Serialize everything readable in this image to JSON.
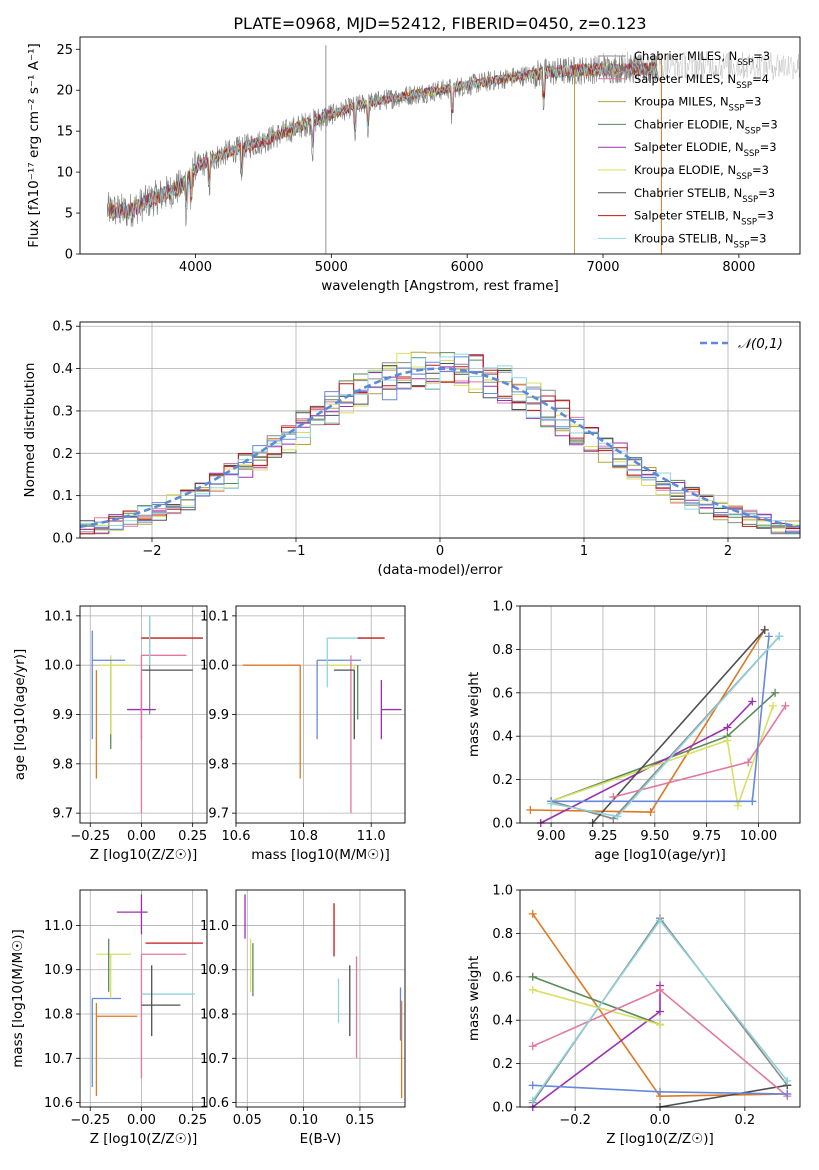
{
  "colors": {
    "legend": [
      "#8a8a8a",
      "#e377a0",
      "#b8a040",
      "#5a8a5a",
      "#9a30b0",
      "#d8e060",
      "#505050",
      "#c01818",
      "#90d8e0"
    ],
    "teal": "#8fd3db",
    "orange": "#e07820",
    "blue": "#6688dd",
    "gauss": "#5b8bd8"
  },
  "chart_data": [
    {
      "type": "line",
      "title": "PLATE=0968, MJD=52412, FIBERID=0450, z=0.123",
      "xlabel": "wavelength [Angstrom, rest frame]",
      "ylabel": "Flux [f_λ10^-17 erg cm^-2 s^-1 A^-1]",
      "xlim": [
        3150,
        8450
      ],
      "ylim": [
        0,
        26.5
      ],
      "xticks": [
        4000,
        5000,
        6000,
        7000,
        8000
      ],
      "yticks": [
        0,
        5,
        10,
        15,
        20,
        25
      ],
      "grid": false,
      "legend_position": "upper-right",
      "continuum": [
        [
          3350,
          5.4
        ],
        [
          3500,
          5.2
        ],
        [
          3700,
          6.8
        ],
        [
          3900,
          8.3
        ],
        [
          4000,
          10.5
        ],
        [
          4200,
          12.2
        ],
        [
          4500,
          13.8
        ],
        [
          4800,
          15.8
        ],
        [
          5000,
          17.0
        ],
        [
          5200,
          18.2
        ],
        [
          5500,
          19.2
        ],
        [
          5800,
          20.0
        ],
        [
          6000,
          20.6
        ],
        [
          6300,
          21.5
        ],
        [
          6600,
          22.2
        ],
        [
          7000,
          22.6
        ],
        [
          7400,
          22.6
        ]
      ],
      "legend": [
        {
          "sym": "Chabrier MILES",
          "n": "=3"
        },
        {
          "sym": "Salpeter MILES",
          "n": "=4"
        },
        {
          "sym": "Kroupa MILES",
          "n": "=3"
        },
        {
          "sym": "Chabrier ELODIE",
          "n": "=3"
        },
        {
          "sym": "Salpeter ELODIE",
          "n": "=3"
        },
        {
          "sym": "Kroupa ELODIE",
          "n": "=3"
        },
        {
          "sym": "Chabrier STELIB",
          "n": "=3"
        },
        {
          "sym": "Salpeter STELIB",
          "n": "=3"
        },
        {
          "sym": "Kroupa STELIB",
          "n": "=3"
        }
      ]
    },
    {
      "type": "histogram",
      "xlabel": "(data-model)/error",
      "ylabel": "Normed distribution",
      "xlim": [
        -2.5,
        2.5
      ],
      "ylim": [
        0,
        0.51
      ],
      "xticks": [
        -2,
        -1,
        0,
        1,
        2
      ],
      "yticks": [
        0,
        0.1,
        0.2,
        0.3,
        0.4,
        0.5
      ],
      "grid": true,
      "legend": "𝒩(0,1)",
      "legend_position": "upper-right",
      "bin_width": 0.1,
      "bin_start": -2.5,
      "peak": 0.4
    },
    {
      "type": "scatter",
      "xlabel": "Z [log10(Z/Z☉)]",
      "ylabel": "age [log10(age/yr)]",
      "xlim": [
        -0.3,
        0.32
      ],
      "ylim": [
        9.68,
        10.12
      ],
      "xticks": [
        -0.25,
        0.0,
        0.25
      ],
      "yticks": [
        9.7,
        9.8,
        9.9,
        10.0,
        10.1
      ],
      "grid": true,
      "points": [
        {
          "x": 0.04,
          "y": 10.0,
          "xerr": [
            0.0,
            0.0
          ],
          "yerr": [
            0.1,
            0.1
          ],
          "c": "#8a8a8a"
        },
        {
          "x": -0.22,
          "y": 9.99,
          "xerr": [
            0.0,
            0.0
          ],
          "yerr": [
            0.22,
            0.0
          ],
          "c": "#e07820"
        },
        {
          "x": -0.15,
          "y": 9.99,
          "xerr": [
            0.0,
            0.0
          ],
          "yerr": [
            0.16,
            0.02
          ],
          "c": "#5a8a5a"
        },
        {
          "x": 0.0,
          "y": 9.91,
          "xerr": [
            0.07,
            0.07
          ],
          "yerr": [
            0.06,
            0.06
          ],
          "c": "#9a30b0"
        },
        {
          "x": -0.15,
          "y": 10.0,
          "xerr": [
            0.05,
            0.1
          ],
          "yerr": [
            0.14,
            0.02
          ],
          "c": "#d8e060"
        },
        {
          "x": 0.05,
          "y": 9.99,
          "xerr": [
            0.05,
            0.2
          ],
          "yerr": [
            0.0,
            0.0
          ],
          "c": "#505050"
        },
        {
          "x": 0.13,
          "y": 10.055,
          "xerr": [
            0.13,
            0.17
          ],
          "yerr": [
            0.0,
            0.0
          ],
          "c": "#c01818"
        },
        {
          "x": 0.0,
          "y": 10.02,
          "xerr": [
            0.0,
            0.22
          ],
          "yerr": [
            0.32,
            0.0
          ],
          "c": "#e377a0"
        },
        {
          "x": -0.24,
          "y": 10.01,
          "xerr": [
            0.0,
            0.16
          ],
          "yerr": [
            0.16,
            0.06
          ],
          "c": "#6688dd"
        },
        {
          "x": 0.04,
          "y": 10.0,
          "xerr": [
            0.0,
            0.0
          ],
          "yerr": [
            0.0,
            0.1
          ],
          "c": "#8fd3db"
        }
      ]
    },
    {
      "type": "scatter",
      "xlabel": "mass [log10(M/M☉)]",
      "ylabel": "",
      "xlim": [
        10.6,
        11.1
      ],
      "ylim": [
        9.68,
        10.12
      ],
      "xticks": [
        10.6,
        10.8,
        11.0
      ],
      "yticks": [
        9.7,
        9.8,
        9.9,
        10.0,
        10.1
      ],
      "grid": true,
      "points": [
        {
          "x": 10.79,
          "y": 10.0,
          "xerr": [
            0.17,
            0.0
          ],
          "yerr": [
            0.23,
            0.0
          ],
          "c": "#e07820"
        },
        {
          "x": 10.84,
          "y": 10.01,
          "xerr": [
            0.0,
            0.13
          ],
          "yerr": [
            0.16,
            0.0
          ],
          "c": "#6688dd"
        },
        {
          "x": 10.95,
          "y": 10.0,
          "xerr": [
            0.08,
            0.0
          ],
          "yerr": [
            0.15,
            0.0
          ],
          "c": "#d8e060"
        },
        {
          "x": 10.87,
          "y": 10.055,
          "xerr": [
            0.0,
            0.1
          ],
          "yerr": [
            0.1,
            0.0
          ],
          "c": "#8fd3db"
        },
        {
          "x": 10.94,
          "y": 10.02,
          "xerr": [
            0.0,
            0.0
          ],
          "yerr": [
            0.32,
            0.0
          ],
          "c": "#e377a0"
        },
        {
          "x": 10.95,
          "y": 9.99,
          "xerr": [
            0.06,
            0.0
          ],
          "yerr": [
            0.14,
            0.0
          ],
          "c": "#505050"
        },
        {
          "x": 10.96,
          "y": 10.0,
          "xerr": [
            0.0,
            0.0
          ],
          "yerr": [
            0.11,
            0.0
          ],
          "c": "#5a8a5a"
        },
        {
          "x": 11.03,
          "y": 9.91,
          "xerr": [
            0.0,
            0.06
          ],
          "yerr": [
            0.06,
            0.06
          ],
          "c": "#9a30b0"
        },
        {
          "x": 10.96,
          "y": 10.055,
          "xerr": [
            0.0,
            0.08
          ],
          "yerr": [
            0.0,
            0.0
          ],
          "c": "#c01818"
        }
      ]
    },
    {
      "type": "line",
      "xlabel": "age [log10(age/yr)]",
      "ylabel": "mass weight",
      "xlim": [
        8.85,
        10.2
      ],
      "ylim": [
        0,
        1.0
      ],
      "xticks": [
        9.0,
        9.25,
        9.5,
        9.75,
        10.0
      ],
      "yticks": [
        0.0,
        0.2,
        0.4,
        0.6,
        0.8,
        1.0
      ],
      "grid": true,
      "series": [
        {
          "c": "#8a8a8a",
          "x": [
            9.0,
            9.3,
            10.1
          ],
          "y": [
            0.1,
            0.02,
            0.86
          ]
        },
        {
          "c": "#e07820",
          "x": [
            8.9,
            9.48,
            10.03
          ],
          "y": [
            0.06,
            0.05,
            0.89
          ]
        },
        {
          "c": "#5a8a5a",
          "x": [
            9.0,
            9.85,
            10.08
          ],
          "y": [
            0.1,
            0.4,
            0.6
          ]
        },
        {
          "c": "#9a30b0",
          "x": [
            8.95,
            9.85,
            9.97
          ],
          "y": [
            0.0,
            0.44,
            0.56
          ]
        },
        {
          "c": "#d8e060",
          "x": [
            9.0,
            9.85,
            9.9,
            10.07
          ],
          "y": [
            0.1,
            0.38,
            0.08,
            0.54
          ]
        },
        {
          "c": "#505050",
          "x": [
            9.2,
            10.03
          ],
          "y": [
            0.0,
            0.89
          ]
        },
        {
          "c": "#e377a0",
          "x": [
            9.3,
            9.95,
            10.13
          ],
          "y": [
            0.12,
            0.28,
            0.54
          ]
        },
        {
          "c": "#6688dd",
          "x": [
            9.0,
            9.97,
            10.05
          ],
          "y": [
            0.1,
            0.1,
            0.86
          ]
        },
        {
          "c": "#8fd3db",
          "x": [
            9.0,
            9.32,
            10.1
          ],
          "y": [
            0.09,
            0.03,
            0.86
          ]
        }
      ]
    },
    {
      "type": "scatter",
      "xlabel": "Z [log10(Z/Z☉)]",
      "ylabel": "mass [log10(M/M☉)]",
      "xlim": [
        -0.3,
        0.32
      ],
      "ylim": [
        10.59,
        11.08
      ],
      "xticks": [
        -0.25,
        0.0,
        0.25
      ],
      "yticks": [
        10.6,
        10.7,
        10.8,
        10.9,
        11.0
      ],
      "grid": true,
      "points": [
        {
          "x": -0.22,
          "y": 10.795,
          "xerr": [
            0.0,
            0.2
          ],
          "yerr": [
            0.18,
            0.03
          ],
          "c": "#e07820"
        },
        {
          "x": -0.24,
          "y": 10.835,
          "xerr": [
            0.0,
            0.14
          ],
          "yerr": [
            0.2,
            0.0
          ],
          "c": "#6688dd"
        },
        {
          "x": -0.15,
          "y": 10.935,
          "xerr": [
            0.07,
            0.1
          ],
          "yerr": [
            0.1,
            0.0
          ],
          "c": "#d8e060"
        },
        {
          "x": -0.16,
          "y": 10.95,
          "xerr": [
            0.0,
            0.0
          ],
          "yerr": [
            0.1,
            0.02
          ],
          "c": "#5a8a5a"
        },
        {
          "x": 0.0,
          "y": 11.03,
          "xerr": [
            0.12,
            0.03
          ],
          "yerr": [
            0.05,
            0.04
          ],
          "c": "#9a30b0"
        },
        {
          "x": 0.02,
          "y": 10.96,
          "xerr": [
            0.0,
            0.28
          ],
          "yerr": [
            0.0,
            0.0
          ],
          "c": "#c01818"
        },
        {
          "x": 0.0,
          "y": 10.935,
          "xerr": [
            0.0,
            0.22
          ],
          "yerr": [
            0.28,
            0.0
          ],
          "c": "#e377a0"
        },
        {
          "x": 0.0,
          "y": 10.845,
          "xerr": [
            0.0,
            0.26
          ],
          "yerr": [
            0.0,
            0.0
          ],
          "c": "#8fd3db"
        },
        {
          "x": 0.05,
          "y": 10.82,
          "xerr": [
            0.05,
            0.14
          ],
          "yerr": [
            0.07,
            0.09
          ],
          "c": "#505050"
        }
      ]
    },
    {
      "type": "errorbar",
      "xlabel": "E(B-V)",
      "ylabel": "",
      "xlim": [
        0.04,
        0.19
      ],
      "ylim": [
        10.59,
        11.08
      ],
      "xticks": [
        0.05,
        0.1,
        0.15
      ],
      "yticks": [
        10.6,
        10.7,
        10.8,
        10.9,
        11.0
      ],
      "grid": true,
      "points": [
        {
          "x": 0.048,
          "ylo": 10.97,
          "yhi": 11.07,
          "c": "#9a30b0"
        },
        {
          "x": 0.053,
          "ylo": 10.85,
          "yhi": 10.97,
          "c": "#d8e060"
        },
        {
          "x": 0.055,
          "ylo": 10.84,
          "yhi": 10.96,
          "c": "#5a8a5a"
        },
        {
          "x": 0.127,
          "ylo": 10.93,
          "yhi": 11.05,
          "c": "#c01818"
        },
        {
          "x": 0.131,
          "ylo": 10.78,
          "yhi": 10.88,
          "c": "#8fd3db"
        },
        {
          "x": 0.141,
          "ylo": 10.75,
          "yhi": 10.91,
          "c": "#505050"
        },
        {
          "x": 0.147,
          "ylo": 10.7,
          "yhi": 10.93,
          "c": "#e377a0"
        },
        {
          "x": 0.186,
          "ylo": 10.74,
          "yhi": 10.86,
          "c": "#6688dd"
        },
        {
          "x": 0.187,
          "ylo": 10.61,
          "yhi": 10.83,
          "c": "#e07820"
        }
      ]
    },
    {
      "type": "line",
      "xlabel": "Z [log10(Z/Z☉)]",
      "ylabel": "mass weight",
      "xlim": [
        -0.33,
        0.33
      ],
      "ylim": [
        0,
        1.0
      ],
      "xticks": [
        -0.2,
        0.0,
        0.2
      ],
      "yticks": [
        0.0,
        0.2,
        0.4,
        0.6,
        0.8,
        1.0
      ],
      "grid": true,
      "series": [
        {
          "c": "#8a8a8a",
          "x": [
            -0.3,
            0.0,
            0.3
          ],
          "y": [
            0.02,
            0.87,
            0.1
          ]
        },
        {
          "c": "#e07820",
          "x": [
            -0.3,
            0.0,
            0.3
          ],
          "y": [
            0.89,
            0.05,
            0.06
          ]
        },
        {
          "c": "#5a8a5a",
          "x": [
            -0.3,
            0.0
          ],
          "y": [
            0.6,
            0.38
          ]
        },
        {
          "c": "#9a30b0",
          "x": [
            -0.3,
            0.0,
            0.0
          ],
          "y": [
            0.0,
            0.44,
            0.56
          ]
        },
        {
          "c": "#d8e060",
          "x": [
            -0.3,
            0.0
          ],
          "y": [
            0.54,
            0.38
          ]
        },
        {
          "c": "#505050",
          "x": [
            0.0,
            0.3
          ],
          "y": [
            0.0,
            0.1
          ]
        },
        {
          "c": "#e377a0",
          "x": [
            -0.3,
            0.0,
            0.3
          ],
          "y": [
            0.28,
            0.54,
            0.05
          ]
        },
        {
          "c": "#6688dd",
          "x": [
            -0.3,
            0.0,
            0.3
          ],
          "y": [
            0.1,
            0.07,
            0.06
          ]
        },
        {
          "c": "#8fd3db",
          "x": [
            -0.3,
            0.0,
            0.3
          ],
          "y": [
            0.03,
            0.86,
            0.12
          ]
        }
      ]
    }
  ]
}
